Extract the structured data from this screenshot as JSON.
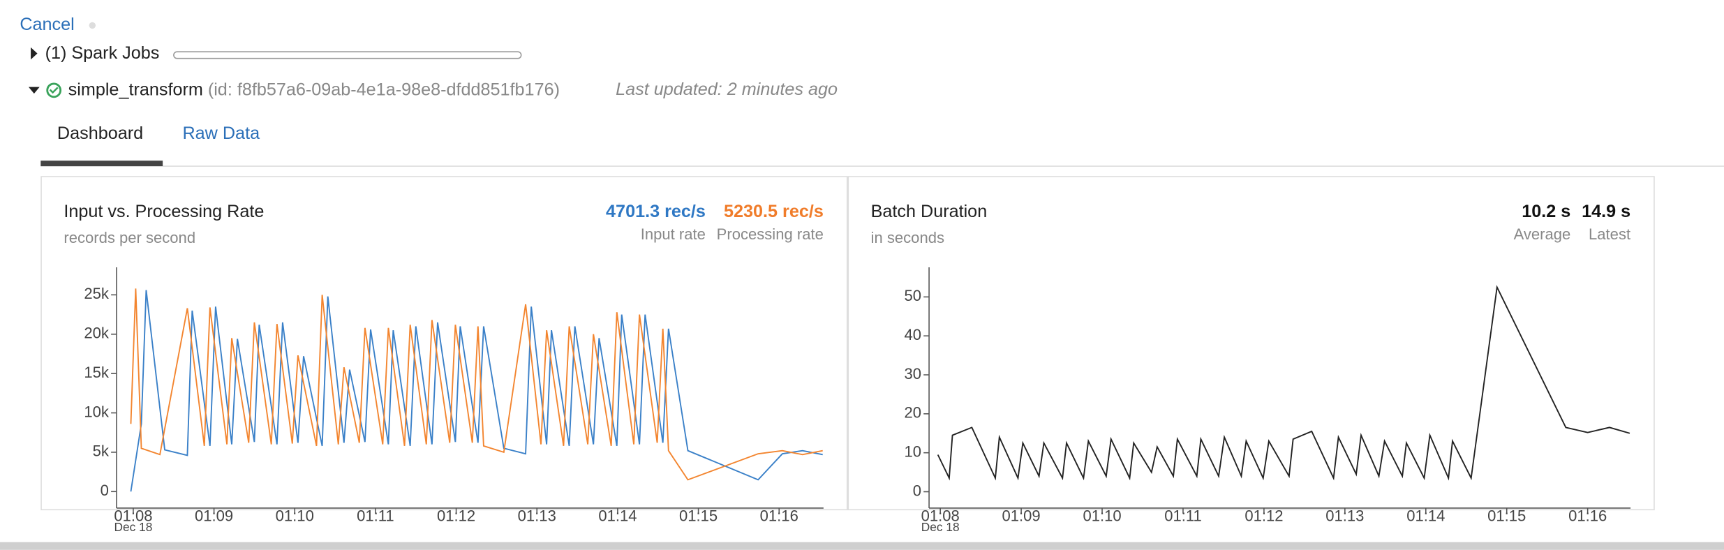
{
  "header": {
    "cancel": "Cancel",
    "spark_jobs": "(1) Spark Jobs",
    "query_name": "simple_transform",
    "query_id": "(id: f8fb57a6-09ab-4e1a-98e8-dfdd851fb176)",
    "last_updated": "Last updated: 2 minutes ago"
  },
  "tabs": [
    "Dashboard",
    "Raw Data"
  ],
  "chart_data": [
    {
      "type": "line",
      "title": "Input vs. Processing Rate",
      "subtitle": "records per second",
      "stats": [
        {
          "value": "4701.3 rec/s",
          "label": "Input rate",
          "color": "#2f78c4"
        },
        {
          "value": "5230.5 rec/s",
          "label": "Processing rate",
          "color": "#f07c2a"
        }
      ],
      "series": [
        {
          "color": "#3a80c8",
          "x": [
            67.97,
            68.1,
            68.16,
            68.39,
            68.67,
            68.73,
            68.95,
            69.02,
            69.22,
            69.29,
            69.5,
            69.56,
            69.78,
            69.85,
            70.04,
            70.11,
            70.34,
            70.41,
            70.61,
            70.68,
            70.87,
            70.94,
            71.16,
            71.22,
            71.43,
            71.5,
            71.7,
            71.77,
            71.99,
            72.05,
            72.27,
            72.34,
            72.59,
            72.86,
            72.93,
            73.12,
            73.18,
            73.4,
            73.47,
            73.7,
            73.77,
            73.99,
            74.05,
            74.27,
            74.34,
            74.56,
            74.63,
            74.87,
            75.74,
            76.04,
            76.29,
            76.54
          ],
          "values": [
            0,
            8600,
            25600,
            5300,
            4600,
            23000,
            5800,
            23500,
            6000,
            19400,
            6300,
            21200,
            6000,
            21500,
            6200,
            17200,
            5800,
            24800,
            6200,
            15500,
            6300,
            20600,
            6000,
            20500,
            5800,
            21000,
            6000,
            21500,
            6300,
            21000,
            6200,
            21000,
            5500,
            4800,
            23500,
            6000,
            20500,
            5800,
            21000,
            6000,
            19500,
            5800,
            22500,
            6000,
            22500,
            6200,
            20700,
            5200,
            1500,
            4800,
            5200,
            4700
          ]
        },
        {
          "color": "#f3852f",
          "x": [
            67.97,
            68.03,
            68.1,
            68.33,
            68.67,
            68.88,
            68.95,
            69.16,
            69.22,
            69.43,
            69.5,
            69.71,
            69.78,
            69.97,
            70.04,
            70.27,
            70.34,
            70.54,
            70.61,
            70.8,
            70.87,
            71.09,
            71.16,
            71.36,
            71.43,
            71.63,
            71.7,
            71.92,
            71.99,
            72.2,
            72.27,
            72.34,
            72.59,
            72.86,
            73.05,
            73.12,
            73.33,
            73.4,
            73.63,
            73.7,
            73.92,
            73.99,
            74.2,
            74.27,
            74.49,
            74.56,
            74.63,
            74.87,
            75.74,
            76.04,
            76.29,
            76.54
          ],
          "values": [
            8600,
            25800,
            5500,
            4700,
            23300,
            5800,
            23400,
            6000,
            19500,
            6200,
            21500,
            6000,
            21300,
            6100,
            17300,
            5800,
            25000,
            6000,
            15800,
            6200,
            20800,
            6000,
            20800,
            5800,
            21200,
            6000,
            21800,
            6200,
            21200,
            6200,
            21000,
            5800,
            5000,
            23800,
            6000,
            20500,
            5800,
            21000,
            6000,
            20000,
            5800,
            22800,
            6000,
            22500,
            6200,
            20700,
            5200,
            1500,
            4800,
            5200,
            4700,
            5200
          ]
        }
      ],
      "xlim": [
        67.97,
        76.55
      ],
      "xticks": [
        {
          "value": 68,
          "label": "01:08"
        },
        {
          "value": 69,
          "label": "01:09"
        },
        {
          "value": 70,
          "label": "01:10"
        },
        {
          "value": 71,
          "label": "01:11"
        },
        {
          "value": 72,
          "label": "01:12"
        },
        {
          "value": 73,
          "label": "01:13"
        },
        {
          "value": 74,
          "label": "01:14"
        },
        {
          "value": 75,
          "label": "01:15"
        },
        {
          "value": 76,
          "label": "01:16"
        }
      ],
      "x_sublabel": "Dec 18",
      "ylim": [
        -2100,
        28500
      ],
      "yticks": [
        0,
        {
          "value": 5000,
          "label": "5k"
        },
        {
          "value": 10000,
          "label": "10k"
        },
        {
          "value": 15000,
          "label": "15k"
        },
        {
          "value": 20000,
          "label": "20k"
        },
        {
          "value": 25000,
          "label": "25k"
        }
      ]
    },
    {
      "type": "line",
      "title": "Batch Duration",
      "subtitle": "in seconds",
      "stats": [
        {
          "value": "10.2 s",
          "label": "Average",
          "color": "#111111"
        },
        {
          "value": "14.9 s",
          "label": "Latest",
          "color": "#111111"
        }
      ],
      "series": [
        {
          "color": "#222222",
          "x": [
            67.97,
            68.11,
            68.15,
            68.39,
            68.68,
            68.73,
            68.96,
            69.02,
            69.22,
            69.28,
            69.51,
            69.56,
            69.77,
            69.83,
            70.05,
            70.11,
            70.34,
            70.39,
            70.61,
            70.68,
            70.88,
            70.93,
            71.17,
            71.22,
            71.44,
            71.51,
            71.72,
            71.78,
            71.99,
            72.06,
            72.31,
            72.36,
            72.59,
            72.86,
            72.92,
            73.14,
            73.2,
            73.42,
            73.49,
            73.71,
            73.76,
            73.98,
            74.05,
            74.28,
            74.33,
            74.56,
            74.88,
            75.73,
            76.0,
            76.27,
            76.52
          ],
          "values": [
            9.5,
            3.5,
            14.5,
            16.5,
            3.5,
            14,
            3.5,
            12.5,
            4,
            12.5,
            3.5,
            12.5,
            3.5,
            13,
            4,
            13.5,
            3.5,
            12.5,
            5,
            11.5,
            4,
            13.5,
            4,
            13.5,
            4,
            14,
            4,
            13,
            3.5,
            13,
            4,
            13.5,
            15.5,
            3.5,
            14,
            4.5,
            14.5,
            4,
            13,
            4,
            12.5,
            3.5,
            14.5,
            3.5,
            13,
            3.5,
            52.5,
            16.5,
            15.2,
            16.5,
            15
          ]
        }
      ],
      "xlim": [
        67.97,
        76.53
      ],
      "xticks": [
        {
          "value": 68,
          "label": "01:08"
        },
        {
          "value": 69,
          "label": "01:09"
        },
        {
          "value": 70,
          "label": "01:10"
        },
        {
          "value": 71,
          "label": "01:11"
        },
        {
          "value": 72,
          "label": "01:12"
        },
        {
          "value": 73,
          "label": "01:13"
        },
        {
          "value": 74,
          "label": "01:14"
        },
        {
          "value": 75,
          "label": "01:15"
        },
        {
          "value": 76,
          "label": "01:16"
        }
      ],
      "x_sublabel": "Dec 18",
      "ylim": [
        -4.2,
        57.6
      ],
      "yticks": [
        0,
        10,
        20,
        30,
        40,
        50
      ]
    }
  ]
}
